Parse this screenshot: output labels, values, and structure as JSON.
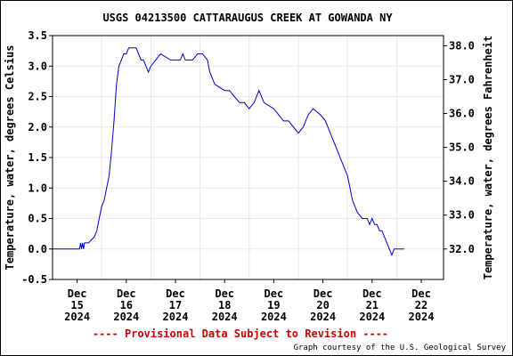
{
  "chart_data": {
    "type": "line",
    "title": "USGS 04213500 CATTARAUGUS CREEK AT GOWANDA NY",
    "ylabel_left": "Temperature, water, degrees Celsius",
    "ylabel_right": "Temperature, water, degrees Fahrenheit",
    "ylim": [
      -0.5,
      3.5
    ],
    "xlim": [
      0,
      7.5
    ],
    "left_ticks": [
      "-0.5",
      "0.0",
      "0.5",
      "1.0",
      "1.5",
      "2.0",
      "2.5",
      "3.0",
      "3.5"
    ],
    "left_tick_values": [
      -0.5,
      0,
      0.5,
      1,
      1.5,
      2,
      2.5,
      3,
      3.5
    ],
    "right_ticks": [
      "32.0",
      "33.0",
      "34.0",
      "35.0",
      "36.0",
      "37.0",
      "38.0"
    ],
    "right_tick_values": [
      32,
      33,
      34,
      35,
      36,
      37,
      38
    ],
    "x_ticks": [
      {
        "month": "Dec",
        "day": "15",
        "year": "2024",
        "x": 0.5
      },
      {
        "month": "Dec",
        "day": "16",
        "year": "2024",
        "x": 1.5
      },
      {
        "month": "Dec",
        "day": "17",
        "year": "2024",
        "x": 2.5
      },
      {
        "month": "Dec",
        "day": "18",
        "year": "2024",
        "x": 3.5
      },
      {
        "month": "Dec",
        "day": "19",
        "year": "2024",
        "x": 4.5
      },
      {
        "month": "Dec",
        "day": "20",
        "year": "2024",
        "x": 5.5
      },
      {
        "month": "Dec",
        "day": "21",
        "year": "2024",
        "x": 6.5
      },
      {
        "month": "Dec",
        "day": "22",
        "year": "2024",
        "x": 7.5
      }
    ],
    "grid": true,
    "series": [
      {
        "color": "#0000cc",
        "x": [
          0,
          0.55,
          0.57,
          0.59,
          0.61,
          0.63,
          0.65,
          0.68,
          0.71,
          0.73,
          0.85,
          0.9,
          0.95,
          1.0,
          1.05,
          1.1,
          1.15,
          1.2,
          1.25,
          1.3,
          1.35,
          1.4,
          1.45,
          1.5,
          1.55,
          1.6,
          1.65,
          1.7,
          1.75,
          1.8,
          1.85,
          1.9,
          1.95,
          2.0,
          2.1,
          2.2,
          2.4,
          2.5,
          2.55,
          2.6,
          2.65,
          2.7,
          2.75,
          2.8,
          2.85,
          2.95,
          3.05,
          3.15,
          3.2,
          3.3,
          3.5,
          3.6,
          3.7,
          3.8,
          3.85,
          3.9,
          4.0,
          4.1,
          4.2,
          4.3,
          4.5,
          4.6,
          4.7,
          4.8,
          4.9,
          5.0,
          5.1,
          5.2,
          5.3,
          5.45,
          5.55,
          5.65,
          5.75,
          5.85,
          5.95,
          6.0,
          6.05,
          6.1,
          6.2,
          6.3,
          6.4,
          6.45,
          6.5,
          6.55,
          6.6,
          6.65,
          6.7,
          6.75,
          6.8,
          6.85,
          6.9,
          6.95,
          7.0,
          7.02,
          7.05,
          7.15
        ],
        "values": [
          0.0,
          0.0,
          0.1,
          0.0,
          0.1,
          0.0,
          0.1,
          0.1,
          0.1,
          0.1,
          0.2,
          0.3,
          0.5,
          0.7,
          0.8,
          1.0,
          1.2,
          1.6,
          2.1,
          2.7,
          3.0,
          3.1,
          3.2,
          3.2,
          3.3,
          3.3,
          3.3,
          3.3,
          3.2,
          3.1,
          3.1,
          3.0,
          2.9,
          3.0,
          3.1,
          3.2,
          3.1,
          3.1,
          3.1,
          3.1,
          3.2,
          3.1,
          3.1,
          3.1,
          3.1,
          3.2,
          3.2,
          3.1,
          2.9,
          2.7,
          2.6,
          2.6,
          2.5,
          2.4,
          2.4,
          2.4,
          2.3,
          2.4,
          2.6,
          2.4,
          2.3,
          2.2,
          2.1,
          2.1,
          2.0,
          1.9,
          2.0,
          2.2,
          2.3,
          2.2,
          2.1,
          1.9,
          1.7,
          1.5,
          1.3,
          1.2,
          1.0,
          0.8,
          0.6,
          0.5,
          0.5,
          0.4,
          0.5,
          0.4,
          0.4,
          0.3,
          0.3,
          0.2,
          0.1,
          0.0,
          -0.1,
          0.0,
          0.0,
          0.0,
          0.0,
          0.0
        ]
      }
    ]
  },
  "footer": {
    "provisional": "---- Provisional Data Subject to Revision ----",
    "credit": "Graph courtesy of the U.S. Geological Survey"
  },
  "colors": {
    "line": "#0000cc",
    "warning": "#cc0000",
    "grid": "#e8e8e8"
  }
}
